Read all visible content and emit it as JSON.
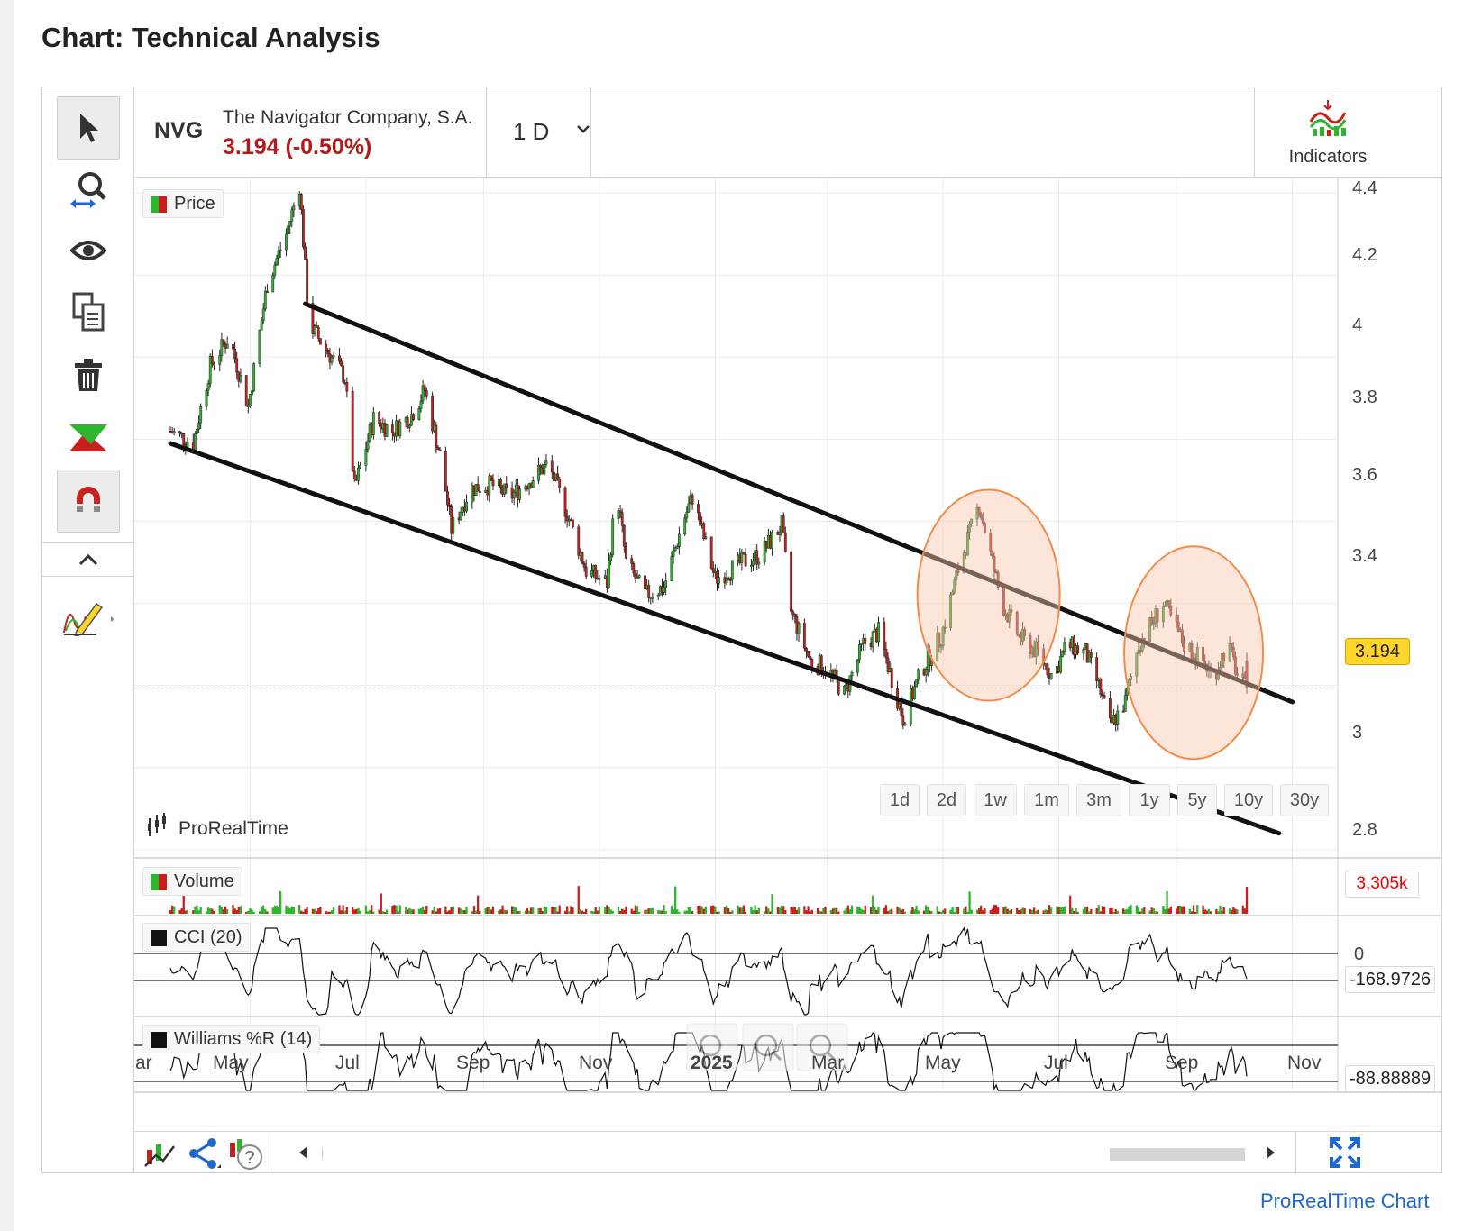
{
  "page": {
    "title": "Chart: Technical Analysis",
    "footer_link": "ProRealTime Chart"
  },
  "instrument": {
    "ticker": "NVG",
    "name": "The Navigator Company, S.A.",
    "price_change": "3.194 (-0.50%)"
  },
  "header": {
    "period": "1 D",
    "indicators_label": "Indicators"
  },
  "legends": {
    "price": "Price",
    "volume": "Volume",
    "cci": "CCI (20)",
    "williams": "Williams %R (14)",
    "watermark": "ProRealTime"
  },
  "y_axis_labels": [
    "4.4",
    "4.2",
    "4",
    "3.8",
    "3.6",
    "3.4",
    "3",
    "2.8"
  ],
  "x_axis_labels": [
    "ar",
    "May",
    "Jul",
    "Sep",
    "Nov",
    "2025",
    "Mar",
    "May",
    "Jul",
    "Sep",
    "Nov"
  ],
  "range_buttons": [
    "1d",
    "2d",
    "1w",
    "1m",
    "3m",
    "1y",
    "5y",
    "10y",
    "30y"
  ],
  "badges": {
    "last_price": "3.194",
    "volume": "3,305k",
    "cci_value": "-168.9726",
    "cci_zero": "0",
    "williams_value": "-88.88889"
  },
  "colors": {
    "up": "#2db52d",
    "down": "#c8201c",
    "annotation": "#f28c4a",
    "accent_blue": "#1e66d0",
    "price_badge": "#ffd52c"
  },
  "icons": [
    "cursor-icon",
    "zoom-icon",
    "eye-icon",
    "copy-icon",
    "trash-icon",
    "crossover-icon",
    "magnet-icon",
    "chevron-up-icon",
    "drawing-pencil-icon",
    "chart-add-icon",
    "share-icon",
    "help-icon",
    "scroll-left-icon",
    "scroll-right-icon",
    "fullscreen-icon",
    "undo-icon",
    "zoom-out-icon",
    "zoom-in-icon",
    "chevron-down-icon",
    "indicators-icon"
  ],
  "chart_data": {
    "type": "candlestick",
    "instrument": "NVG",
    "period": "1 D",
    "y_range": [
      2.8,
      4.45
    ],
    "x_range": [
      "2024-03",
      "2025-11"
    ],
    "close_path": [
      [
        "2024-03-20",
        3.82
      ],
      [
        "2024-04-01",
        3.79
      ],
      [
        "2024-04-10",
        3.98
      ],
      [
        "2024-04-20",
        4.05
      ],
      [
        "2024-04-30",
        3.88
      ],
      [
        "2024-05-10",
        4.18
      ],
      [
        "2024-05-20",
        4.3
      ],
      [
        "2024-05-27",
        4.42
      ],
      [
        "2024-06-01",
        4.08
      ],
      [
        "2024-06-10",
        4.02
      ],
      [
        "2024-06-20",
        3.95
      ],
      [
        "2024-06-25",
        3.68
      ],
      [
        "2024-07-05",
        3.85
      ],
      [
        "2024-07-15",
        3.82
      ],
      [
        "2024-07-25",
        3.86
      ],
      [
        "2024-08-01",
        3.92
      ],
      [
        "2024-08-10",
        3.74
      ],
      [
        "2024-08-15",
        3.58
      ],
      [
        "2024-08-25",
        3.68
      ],
      [
        "2024-09-05",
        3.69
      ],
      [
        "2024-09-15",
        3.66
      ],
      [
        "2024-09-25",
        3.7
      ],
      [
        "2024-10-05",
        3.74
      ],
      [
        "2024-10-15",
        3.62
      ],
      [
        "2024-10-25",
        3.48
      ],
      [
        "2024-11-05",
        3.45
      ],
      [
        "2024-11-10",
        3.68
      ],
      [
        "2024-11-15",
        3.5
      ],
      [
        "2024-11-25",
        3.42
      ],
      [
        "2024-12-05",
        3.44
      ],
      [
        "2024-12-15",
        3.6
      ],
      [
        "2024-12-20",
        3.66
      ],
      [
        "2025-01-01",
        3.46
      ],
      [
        "2025-01-15",
        3.5
      ],
      [
        "2025-01-25",
        3.52
      ],
      [
        "2025-02-05",
        3.59
      ],
      [
        "2025-02-10",
        3.38
      ],
      [
        "2025-02-20",
        3.26
      ],
      [
        "2025-03-01",
        3.24
      ],
      [
        "2025-03-10",
        3.18
      ],
      [
        "2025-03-20",
        3.3
      ],
      [
        "2025-03-28",
        3.33
      ],
      [
        "2025-04-05",
        3.2
      ],
      [
        "2025-04-10",
        3.12
      ],
      [
        "2025-04-20",
        3.24
      ],
      [
        "2025-04-30",
        3.32
      ],
      [
        "2025-05-10",
        3.5
      ],
      [
        "2025-05-20",
        3.64
      ],
      [
        "2025-06-01",
        3.4
      ],
      [
        "2025-06-10",
        3.32
      ],
      [
        "2025-06-20",
        3.28
      ],
      [
        "2025-06-28",
        3.22
      ],
      [
        "2025-07-05",
        3.3
      ],
      [
        "2025-07-15",
        3.28
      ],
      [
        "2025-07-22",
        3.2
      ],
      [
        "2025-07-28",
        3.1
      ],
      [
        "2025-08-05",
        3.16
      ],
      [
        "2025-08-12",
        3.3
      ],
      [
        "2025-08-20",
        3.36
      ],
      [
        "2025-08-25",
        3.4
      ],
      [
        "2025-09-05",
        3.3
      ],
      [
        "2025-09-15",
        3.26
      ],
      [
        "2025-09-20",
        3.22
      ],
      [
        "2025-09-28",
        3.3
      ],
      [
        "2025-10-05",
        3.2
      ],
      [
        "2025-10-08",
        3.194
      ]
    ],
    "last": 3.194,
    "change_pct": -0.5,
    "volume_last": "3,305k",
    "indicators": [
      {
        "name": "CCI (20)",
        "last": -168.9726,
        "reference": 0
      },
      {
        "name": "Williams %R (14)",
        "last": -88.88889
      }
    ],
    "annotations": [
      {
        "type": "trendline",
        "from": [
          "2024-05-30",
          4.13
        ],
        "to": [
          "2025-11-01",
          3.16
        ],
        "role": "channel upper"
      },
      {
        "type": "trendline",
        "from": [
          "2024-03-20",
          3.79
        ],
        "to": [
          "2025-10-25",
          2.84
        ],
        "role": "channel lower"
      },
      {
        "type": "ellipse",
        "center": [
          "2025-05-25",
          3.42
        ],
        "color": "orange"
      },
      {
        "type": "ellipse",
        "center": [
          "2025-09-10",
          3.28
        ],
        "color": "orange"
      }
    ]
  }
}
